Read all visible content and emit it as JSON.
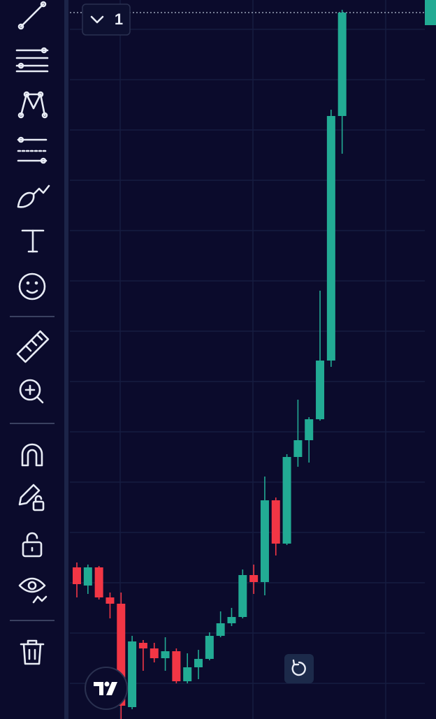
{
  "header": {
    "badge": "1"
  },
  "chart_data": {
    "type": "candlestick",
    "open": [
      217,
      191,
      217,
      174,
      165,
      17,
      109,
      101,
      87,
      97,
      54,
      74,
      86,
      119,
      137,
      146,
      206,
      196,
      313,
      251,
      375,
      399,
      429,
      513,
      863
    ],
    "high": [
      224,
      221,
      219,
      181,
      181,
      119,
      113,
      109,
      117,
      101,
      94,
      99,
      124,
      154,
      159,
      214,
      221,
      347,
      317,
      379,
      457,
      432,
      613,
      872,
      1015
    ],
    "low": [
      174,
      179,
      171,
      144,
      0,
      14,
      69,
      81,
      69,
      51,
      51,
      57,
      84,
      117,
      133,
      144,
      179,
      177,
      234,
      249,
      361,
      367,
      427,
      504,
      809
    ],
    "close": [
      193,
      217,
      174,
      165,
      19,
      111,
      101,
      87,
      97,
      54,
      74,
      86,
      119,
      137,
      146,
      206,
      196,
      313,
      251,
      375,
      399,
      429,
      513,
      863,
      1011
    ],
    "ylim": [
      0,
      1029
    ],
    "up_color": "#22ab94",
    "down_color": "#f23645"
  }
}
